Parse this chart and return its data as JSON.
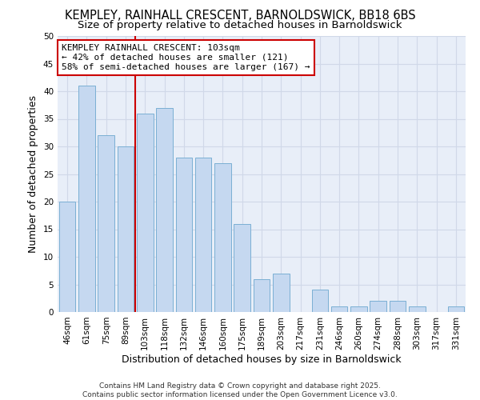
{
  "title": "KEMPLEY, RAINHALL CRESCENT, BARNOLDSWICK, BB18 6BS",
  "subtitle": "Size of property relative to detached houses in Barnoldswick",
  "xlabel": "Distribution of detached houses by size in Barnoldswick",
  "ylabel": "Number of detached properties",
  "categories": [
    "46sqm",
    "61sqm",
    "75sqm",
    "89sqm",
    "103sqm",
    "118sqm",
    "132sqm",
    "146sqm",
    "160sqm",
    "175sqm",
    "189sqm",
    "203sqm",
    "217sqm",
    "231sqm",
    "246sqm",
    "260sqm",
    "274sqm",
    "288sqm",
    "303sqm",
    "317sqm",
    "331sqm"
  ],
  "values": [
    20,
    41,
    32,
    30,
    36,
    37,
    28,
    28,
    27,
    16,
    6,
    7,
    0,
    4,
    1,
    1,
    2,
    2,
    1,
    0,
    1
  ],
  "bar_color": "#c5d8f0",
  "bar_edge_color": "#7bafd4",
  "vline_x_index": 4,
  "vline_color": "#cc0000",
  "annotation_text": "KEMPLEY RAINHALL CRESCENT: 103sqm\n← 42% of detached houses are smaller (121)\n58% of semi-detached houses are larger (167) →",
  "annotation_box_color": "white",
  "annotation_box_edge": "#cc0000",
  "ylim": [
    0,
    50
  ],
  "yticks": [
    0,
    5,
    10,
    15,
    20,
    25,
    30,
    35,
    40,
    45,
    50
  ],
  "grid_color": "#d0d8e8",
  "bg_color": "#e8eef8",
  "footer": "Contains HM Land Registry data © Crown copyright and database right 2025.\nContains public sector information licensed under the Open Government Licence v3.0.",
  "title_fontsize": 10.5,
  "subtitle_fontsize": 9.5,
  "axis_label_fontsize": 9,
  "tick_fontsize": 7.5,
  "annotation_fontsize": 8
}
